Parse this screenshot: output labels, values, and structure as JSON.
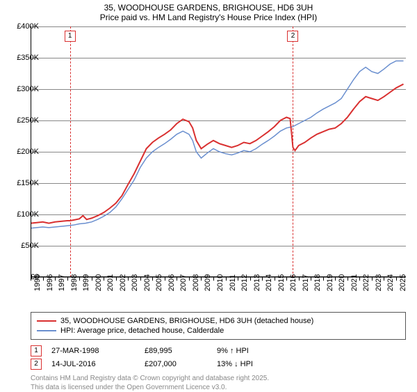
{
  "title_line1": "35, WOODHOUSE GARDENS, BRIGHOUSE, HD6 3UH",
  "title_line2": "Price paid vs. HM Land Registry's House Price Index (HPI)",
  "chart": {
    "type": "line",
    "background_color": "#ffffff",
    "grid_color": "#888888",
    "axis_color": "#000000",
    "x_range": [
      1995,
      2025.8
    ],
    "y_range": [
      0,
      400000
    ],
    "y_ticks": [
      0,
      50000,
      100000,
      150000,
      200000,
      250000,
      300000,
      350000,
      400000
    ],
    "y_tick_labels": [
      "£0",
      "£50K",
      "£100K",
      "£150K",
      "£200K",
      "£250K",
      "£300K",
      "£350K",
      "£400K"
    ],
    "y_label_fontsize": 11,
    "x_ticks": [
      1995,
      1996,
      1997,
      1998,
      1999,
      2000,
      2001,
      2002,
      2003,
      2004,
      2005,
      2006,
      2007,
      2008,
      2009,
      2010,
      2011,
      2012,
      2013,
      2014,
      2015,
      2016,
      2017,
      2018,
      2019,
      2020,
      2021,
      2022,
      2023,
      2024,
      2025
    ],
    "x_label_fontsize": 11,
    "markers": [
      {
        "id": "1",
        "x": 1998.23,
        "color": "#d93030"
      },
      {
        "id": "2",
        "x": 2016.53,
        "color": "#d93030"
      }
    ],
    "series": [
      {
        "name": "price_paid",
        "label": "35, WOODHOUSE GARDENS, BRIGHOUSE, HD6 3UH (detached house)",
        "color": "#d93030",
        "line_width": 2,
        "points": [
          [
            1995,
            86000
          ],
          [
            1995.5,
            87000
          ],
          [
            1996,
            88000
          ],
          [
            1996.5,
            86000
          ],
          [
            1997,
            88000
          ],
          [
            1997.5,
            89000
          ],
          [
            1998,
            90000
          ],
          [
            1998.23,
            89995
          ],
          [
            1998.5,
            91000
          ],
          [
            1999,
            93000
          ],
          [
            1999.3,
            98000
          ],
          [
            1999.6,
            92000
          ],
          [
            2000,
            94000
          ],
          [
            2000.5,
            98000
          ],
          [
            2001,
            103000
          ],
          [
            2001.5,
            110000
          ],
          [
            2002,
            118000
          ],
          [
            2002.5,
            130000
          ],
          [
            2003,
            148000
          ],
          [
            2003.5,
            165000
          ],
          [
            2004,
            185000
          ],
          [
            2004.5,
            205000
          ],
          [
            2005,
            215000
          ],
          [
            2005.5,
            222000
          ],
          [
            2006,
            228000
          ],
          [
            2006.5,
            235000
          ],
          [
            2007,
            245000
          ],
          [
            2007.5,
            252000
          ],
          [
            2008,
            248000
          ],
          [
            2008.3,
            238000
          ],
          [
            2008.6,
            218000
          ],
          [
            2009,
            205000
          ],
          [
            2009.5,
            212000
          ],
          [
            2010,
            218000
          ],
          [
            2010.5,
            213000
          ],
          [
            2011,
            210000
          ],
          [
            2011.5,
            207000
          ],
          [
            2012,
            210000
          ],
          [
            2012.5,
            215000
          ],
          [
            2013,
            213000
          ],
          [
            2013.5,
            218000
          ],
          [
            2014,
            225000
          ],
          [
            2014.5,
            232000
          ],
          [
            2015,
            240000
          ],
          [
            2015.5,
            250000
          ],
          [
            2016,
            255000
          ],
          [
            2016.3,
            253000
          ],
          [
            2016.53,
            207000
          ],
          [
            2016.7,
            202000
          ],
          [
            2017,
            210000
          ],
          [
            2017.5,
            215000
          ],
          [
            2018,
            222000
          ],
          [
            2018.5,
            228000
          ],
          [
            2019,
            232000
          ],
          [
            2019.5,
            236000
          ],
          [
            2020,
            238000
          ],
          [
            2020.5,
            245000
          ],
          [
            2021,
            255000
          ],
          [
            2021.5,
            268000
          ],
          [
            2022,
            280000
          ],
          [
            2022.5,
            288000
          ],
          [
            2023,
            285000
          ],
          [
            2023.5,
            282000
          ],
          [
            2024,
            288000
          ],
          [
            2024.5,
            295000
          ],
          [
            2025,
            302000
          ],
          [
            2025.6,
            308000
          ]
        ]
      },
      {
        "name": "hpi",
        "label": "HPI: Average price, detached house, Calderdale",
        "color": "#6a8fcf",
        "line_width": 1.5,
        "points": [
          [
            1995,
            78000
          ],
          [
            1995.5,
            79000
          ],
          [
            1996,
            80000
          ],
          [
            1996.5,
            79000
          ],
          [
            1997,
            80000
          ],
          [
            1997.5,
            81000
          ],
          [
            1998,
            82000
          ],
          [
            1998.5,
            83000
          ],
          [
            1999,
            85000
          ],
          [
            1999.5,
            86000
          ],
          [
            2000,
            88000
          ],
          [
            2000.5,
            92000
          ],
          [
            2001,
            97000
          ],
          [
            2001.5,
            103000
          ],
          [
            2002,
            112000
          ],
          [
            2002.5,
            125000
          ],
          [
            2003,
            140000
          ],
          [
            2003.5,
            155000
          ],
          [
            2004,
            175000
          ],
          [
            2004.5,
            190000
          ],
          [
            2005,
            200000
          ],
          [
            2005.5,
            207000
          ],
          [
            2006,
            213000
          ],
          [
            2006.5,
            220000
          ],
          [
            2007,
            228000
          ],
          [
            2007.5,
            233000
          ],
          [
            2008,
            228000
          ],
          [
            2008.3,
            218000
          ],
          [
            2008.6,
            200000
          ],
          [
            2009,
            190000
          ],
          [
            2009.5,
            198000
          ],
          [
            2010,
            205000
          ],
          [
            2010.5,
            200000
          ],
          [
            2011,
            197000
          ],
          [
            2011.5,
            195000
          ],
          [
            2012,
            198000
          ],
          [
            2012.5,
            202000
          ],
          [
            2013,
            200000
          ],
          [
            2013.5,
            205000
          ],
          [
            2014,
            212000
          ],
          [
            2014.5,
            218000
          ],
          [
            2015,
            225000
          ],
          [
            2015.5,
            233000
          ],
          [
            2016,
            238000
          ],
          [
            2016.5,
            240000
          ],
          [
            2017,
            245000
          ],
          [
            2017.5,
            250000
          ],
          [
            2018,
            255000
          ],
          [
            2018.5,
            262000
          ],
          [
            2019,
            268000
          ],
          [
            2019.5,
            273000
          ],
          [
            2020,
            278000
          ],
          [
            2020.5,
            285000
          ],
          [
            2021,
            300000
          ],
          [
            2021.5,
            315000
          ],
          [
            2022,
            328000
          ],
          [
            2022.5,
            335000
          ],
          [
            2023,
            328000
          ],
          [
            2023.5,
            325000
          ],
          [
            2024,
            332000
          ],
          [
            2024.5,
            340000
          ],
          [
            2025,
            345000
          ],
          [
            2025.6,
            345000
          ]
        ]
      }
    ]
  },
  "legend": {
    "border_color": "#555555",
    "fontsize": 11
  },
  "sales": [
    {
      "marker_id": "1",
      "marker_color": "#d93030",
      "date": "27-MAR-1998",
      "price": "£89,995",
      "diff": "9% ↑ HPI"
    },
    {
      "marker_id": "2",
      "marker_color": "#d93030",
      "date": "14-JUL-2016",
      "price": "£207,000",
      "diff": "13% ↓ HPI"
    }
  ],
  "footer_line1": "Contains HM Land Registry data © Crown copyright and database right 2025.",
  "footer_line2": "This data is licensed under the Open Government Licence v3.0."
}
